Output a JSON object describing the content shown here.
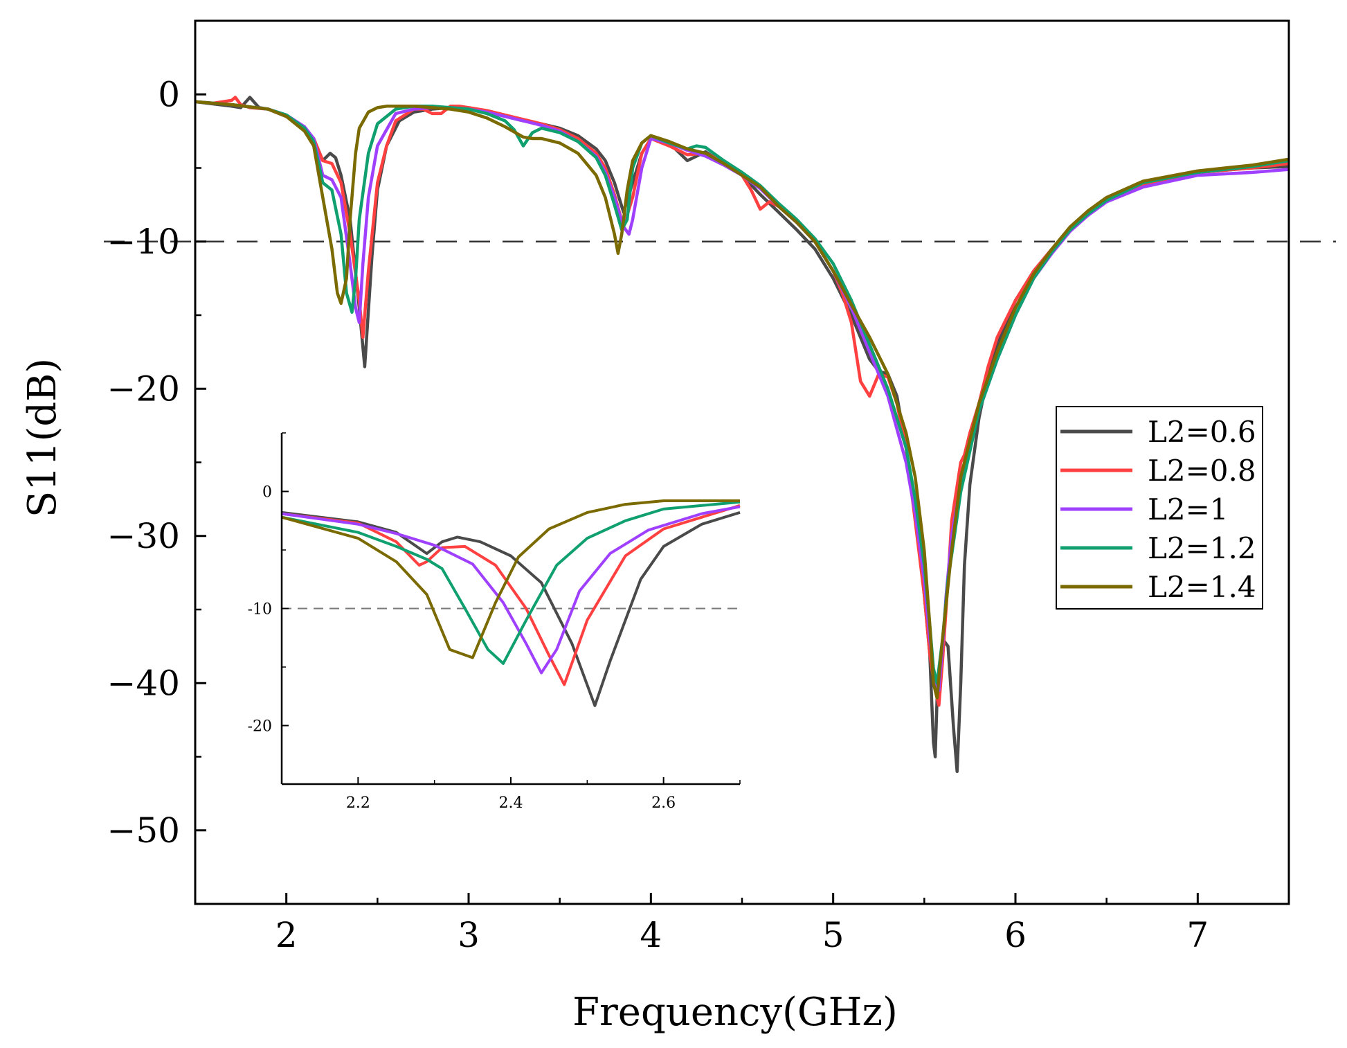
{
  "chart_data": {
    "type": "line",
    "xlabel": "Frequency(GHz)",
    "ylabel": "S11(dB)",
    "xlim": [
      1.5,
      7.5
    ],
    "ylim": [
      -55,
      5
    ],
    "xticks": [
      2,
      3,
      4,
      5,
      6,
      7
    ],
    "yticks": [
      0,
      -10,
      -20,
      -30,
      -40,
      -50
    ],
    "reference_line": {
      "y": -10,
      "style": "dashed"
    },
    "legend": {
      "placement": "right"
    },
    "series": [
      {
        "name": "L2=0.6",
        "color": "#4a4a4a",
        "x": [
          1.5,
          1.7,
          1.75,
          1.8,
          1.85,
          1.9,
          2.0,
          2.1,
          2.15,
          2.2,
          2.24,
          2.27,
          2.3,
          2.35,
          2.4,
          2.43,
          2.47,
          2.5,
          2.55,
          2.62,
          2.7,
          2.8,
          2.9,
          3.0,
          3.1,
          3.2,
          3.3,
          3.4,
          3.5,
          3.6,
          3.7,
          3.75,
          3.8,
          3.85,
          3.9,
          3.95,
          4.0,
          4.1,
          4.15,
          4.2,
          4.25,
          4.3,
          4.5,
          4.6,
          4.7,
          4.8,
          4.9,
          5.0,
          5.1,
          5.2,
          5.25,
          5.3,
          5.35,
          5.4,
          5.45,
          5.5,
          5.53,
          5.55,
          5.56,
          5.57,
          5.6,
          5.63,
          5.66,
          5.68,
          5.7,
          5.72,
          5.75,
          5.8,
          5.85,
          5.9,
          6.0,
          6.05,
          6.1,
          6.2,
          6.3,
          6.4,
          6.5,
          6.7,
          7.0,
          7.3,
          7.5
        ],
        "y": [
          -0.5,
          -0.8,
          -0.9,
          -0.2,
          -0.9,
          -1.0,
          -1.5,
          -2.3,
          -3.0,
          -4.5,
          -4.0,
          -4.3,
          -5.5,
          -8.5,
          -14.5,
          -18.5,
          -11.0,
          -6.5,
          -3.5,
          -1.8,
          -1.2,
          -1.0,
          -0.9,
          -1.0,
          -1.2,
          -1.5,
          -1.8,
          -2.0,
          -2.3,
          -2.8,
          -3.7,
          -4.5,
          -6.0,
          -8.0,
          -6.0,
          -4.0,
          -3.0,
          -3.3,
          -3.9,
          -4.5,
          -4.2,
          -3.9,
          -5.5,
          -6.8,
          -8.0,
          -9.2,
          -10.5,
          -12.5,
          -15.0,
          -18.0,
          -18.8,
          -19.0,
          -20.5,
          -24.0,
          -28.0,
          -34.0,
          -38.0,
          -44.0,
          -45.0,
          -41.0,
          -37.0,
          -37.5,
          -43.0,
          -46.0,
          -40.0,
          -32.0,
          -26.5,
          -22.0,
          -19.0,
          -17.0,
          -14.0,
          -13.0,
          -12.0,
          -10.5,
          -9.2,
          -8.2,
          -7.2,
          -6.2,
          -5.3,
          -5.0,
          -4.9
        ]
      },
      {
        "name": "L2=0.8",
        "color": "#ff4040",
        "x": [
          1.5,
          1.6,
          1.7,
          1.72,
          1.75,
          1.8,
          1.9,
          2.0,
          2.1,
          2.15,
          2.2,
          2.25,
          2.3,
          2.35,
          2.4,
          2.42,
          2.45,
          2.5,
          2.55,
          2.6,
          2.7,
          2.75,
          2.8,
          2.85,
          2.9,
          2.95,
          3.0,
          3.1,
          3.2,
          3.3,
          3.4,
          3.5,
          3.6,
          3.7,
          3.75,
          3.8,
          3.85,
          3.9,
          3.95,
          4.0,
          4.1,
          4.2,
          4.3,
          4.4,
          4.5,
          4.55,
          4.6,
          4.65,
          4.7,
          4.8,
          4.9,
          5.0,
          5.05,
          5.1,
          5.15,
          5.2,
          5.25,
          5.3,
          5.35,
          5.4,
          5.45,
          5.5,
          5.53,
          5.56,
          5.58,
          5.6,
          5.63,
          5.65,
          5.7,
          5.72,
          5.75,
          5.8,
          5.85,
          5.9,
          6.0,
          6.1,
          6.2,
          6.3,
          6.4,
          6.5,
          6.7,
          7.0,
          7.3,
          7.5
        ],
        "y": [
          -0.5,
          -0.6,
          -0.4,
          -0.2,
          -0.7,
          -0.9,
          -1.0,
          -1.5,
          -2.3,
          -3.0,
          -4.5,
          -4.7,
          -6.0,
          -9.5,
          -14.0,
          -16.5,
          -12.0,
          -6.0,
          -3.5,
          -1.8,
          -1.0,
          -1.0,
          -1.3,
          -1.3,
          -0.8,
          -0.8,
          -0.9,
          -1.1,
          -1.4,
          -1.7,
          -2.0,
          -2.4,
          -3.0,
          -4.0,
          -5.0,
          -6.8,
          -9.0,
          -7.0,
          -4.0,
          -3.0,
          -3.5,
          -4.1,
          -4.0,
          -4.6,
          -5.5,
          -6.5,
          -7.8,
          -7.3,
          -7.6,
          -8.7,
          -10.0,
          -12.0,
          -13.5,
          -15.5,
          -19.5,
          -20.5,
          -19.0,
          -19.2,
          -21.0,
          -24.0,
          -29.0,
          -34.0,
          -38.0,
          -40.5,
          -41.5,
          -38.5,
          -33.0,
          -29.0,
          -25.0,
          -24.5,
          -23.0,
          -21.0,
          -18.5,
          -16.5,
          -14.0,
          -12.0,
          -10.5,
          -9.2,
          -8.2,
          -7.2,
          -6.1,
          -5.3,
          -5.0,
          -4.7
        ]
      },
      {
        "name": "L2=1",
        "color": "#a040ff",
        "x": [
          1.5,
          1.7,
          1.9,
          2.0,
          2.1,
          2.15,
          2.2,
          2.25,
          2.3,
          2.35,
          2.38,
          2.4,
          2.42,
          2.45,
          2.5,
          2.6,
          2.7,
          2.8,
          2.9,
          3.0,
          3.1,
          3.2,
          3.3,
          3.4,
          3.5,
          3.6,
          3.7,
          3.75,
          3.8,
          3.85,
          3.88,
          3.9,
          3.95,
          4.0,
          4.1,
          4.2,
          4.3,
          4.4,
          4.5,
          4.6,
          4.7,
          4.8,
          4.9,
          5.0,
          5.1,
          5.2,
          5.3,
          5.4,
          5.45,
          5.5,
          5.53,
          5.56,
          5.58,
          5.6,
          5.62,
          5.65,
          5.7,
          5.8,
          5.9,
          6.0,
          6.1,
          6.2,
          6.3,
          6.4,
          6.5,
          6.7,
          7.0,
          7.3,
          7.5
        ],
        "y": [
          -0.5,
          -0.7,
          -1.0,
          -1.4,
          -2.2,
          -3.0,
          -5.5,
          -5.8,
          -7.0,
          -11.5,
          -14.5,
          -15.5,
          -11.5,
          -7.0,
          -3.5,
          -1.3,
          -1.0,
          -0.9,
          -0.9,
          -1.0,
          -1.2,
          -1.5,
          -1.8,
          -2.1,
          -2.5,
          -3.2,
          -4.2,
          -5.3,
          -7.0,
          -9.0,
          -9.5,
          -8.5,
          -5.0,
          -3.0,
          -3.3,
          -3.8,
          -4.2,
          -4.8,
          -5.5,
          -6.4,
          -7.6,
          -8.7,
          -10.0,
          -12.0,
          -14.5,
          -17.5,
          -20.5,
          -25.0,
          -28.5,
          -33.0,
          -37.0,
          -40.0,
          -40.5,
          -37.5,
          -34.0,
          -30.0,
          -26.5,
          -21.5,
          -18.0,
          -15.0,
          -12.5,
          -10.8,
          -9.3,
          -8.2,
          -7.3,
          -6.3,
          -5.5,
          -5.3,
          -5.1
        ]
      },
      {
        "name": "L2=1.2",
        "color": "#10a070",
        "x": [
          1.5,
          1.7,
          1.9,
          2.0,
          2.1,
          2.15,
          2.2,
          2.25,
          2.3,
          2.33,
          2.36,
          2.38,
          2.4,
          2.45,
          2.5,
          2.6,
          2.7,
          2.8,
          2.9,
          3.0,
          3.1,
          3.2,
          3.25,
          3.3,
          3.35,
          3.4,
          3.5,
          3.6,
          3.7,
          3.75,
          3.8,
          3.84,
          3.87,
          3.9,
          3.95,
          4.0,
          4.1,
          4.2,
          4.25,
          4.3,
          4.4,
          4.5,
          4.6,
          4.7,
          4.8,
          4.9,
          5.0,
          5.1,
          5.2,
          5.3,
          5.4,
          5.45,
          5.5,
          5.53,
          5.55,
          5.57,
          5.6,
          5.63,
          5.7,
          5.8,
          5.9,
          6.0,
          6.1,
          6.2,
          6.3,
          6.4,
          6.5,
          6.7,
          7.0,
          7.3,
          7.5
        ],
        "y": [
          -0.5,
          -0.7,
          -1.0,
          -1.4,
          -2.3,
          -3.2,
          -6.0,
          -6.5,
          -9.5,
          -13.5,
          -14.8,
          -12.5,
          -8.5,
          -4.0,
          -2.0,
          -1.0,
          -0.8,
          -0.8,
          -0.9,
          -1.0,
          -1.3,
          -1.8,
          -2.4,
          -3.5,
          -2.6,
          -2.3,
          -2.6,
          -3.2,
          -4.3,
          -5.5,
          -7.5,
          -9.2,
          -8.5,
          -5.0,
          -3.3,
          -2.8,
          -3.3,
          -3.7,
          -3.5,
          -3.6,
          -4.5,
          -5.3,
          -6.2,
          -7.4,
          -8.5,
          -9.8,
          -11.5,
          -14.0,
          -17.0,
          -20.0,
          -24.0,
          -27.5,
          -32.0,
          -36.0,
          -39.0,
          -40.0,
          -37.0,
          -33.0,
          -27.0,
          -21.5,
          -18.0,
          -15.0,
          -12.5,
          -10.7,
          -9.2,
          -8.1,
          -7.2,
          -6.0,
          -5.3,
          -4.9,
          -4.5
        ]
      },
      {
        "name": "L2=1.4",
        "color": "#7a6a00",
        "x": [
          1.5,
          1.7,
          1.9,
          2.0,
          2.1,
          2.15,
          2.2,
          2.25,
          2.28,
          2.3,
          2.33,
          2.35,
          2.38,
          2.4,
          2.45,
          2.5,
          2.55,
          2.6,
          2.7,
          2.8,
          2.9,
          3.0,
          3.1,
          3.2,
          3.3,
          3.35,
          3.4,
          3.5,
          3.6,
          3.7,
          3.75,
          3.8,
          3.82,
          3.84,
          3.87,
          3.9,
          3.95,
          4.0,
          4.1,
          4.2,
          4.3,
          4.4,
          4.5,
          4.6,
          4.7,
          4.8,
          4.9,
          5.0,
          5.1,
          5.2,
          5.3,
          5.4,
          5.45,
          5.5,
          5.53,
          5.55,
          5.57,
          5.6,
          5.65,
          5.7,
          5.8,
          5.9,
          6.0,
          6.1,
          6.2,
          6.3,
          6.4,
          6.5,
          6.7,
          7.0,
          7.3,
          7.5
        ],
        "y": [
          -0.5,
          -0.7,
          -1.0,
          -1.5,
          -2.5,
          -3.5,
          -7.0,
          -10.5,
          -13.5,
          -14.2,
          -12.5,
          -8.5,
          -4.0,
          -2.3,
          -1.2,
          -0.9,
          -0.8,
          -0.8,
          -0.8,
          -0.9,
          -1.0,
          -1.2,
          -1.6,
          -2.2,
          -2.9,
          -3.0,
          -3.0,
          -3.3,
          -4.0,
          -5.5,
          -7.0,
          -9.5,
          -10.8,
          -9.5,
          -6.5,
          -4.5,
          -3.3,
          -2.8,
          -3.2,
          -3.7,
          -4.0,
          -4.7,
          -5.5,
          -6.3,
          -7.6,
          -8.7,
          -10.0,
          -12.0,
          -14.3,
          -16.5,
          -19.0,
          -23.0,
          -26.0,
          -31.0,
          -36.0,
          -40.0,
          -41.0,
          -37.0,
          -31.0,
          -26.0,
          -21.0,
          -17.5,
          -14.5,
          -12.2,
          -10.5,
          -9.0,
          -7.9,
          -7.0,
          -5.9,
          -5.2,
          -4.8,
          -4.4
        ]
      }
    ]
  },
  "inset": {
    "xlim": [
      2.1,
      2.7
    ],
    "ylim": [
      -25,
      5
    ],
    "xticks": [
      "2.2",
      "2.4",
      "2.6"
    ],
    "yticks": [
      "0",
      "-10",
      "-20"
    ],
    "reference_line": {
      "y": -10,
      "style": "dashed"
    },
    "series": [
      {
        "name": "L2=0.6",
        "color": "#4a4a4a",
        "x": [
          2.1,
          2.2,
          2.25,
          2.29,
          2.31,
          2.33,
          2.36,
          2.4,
          2.44,
          2.48,
          2.51,
          2.53,
          2.57,
          2.6,
          2.65,
          2.7
        ],
        "y": [
          -1.8,
          -2.6,
          -3.5,
          -5.3,
          -4.3,
          -3.9,
          -4.3,
          -5.5,
          -7.8,
          -13.0,
          -18.3,
          -14.5,
          -7.5,
          -4.7,
          -2.8,
          -1.8
        ]
      },
      {
        "name": "L2=0.8",
        "color": "#ff4040",
        "x": [
          2.1,
          2.2,
          2.25,
          2.28,
          2.29,
          2.31,
          2.34,
          2.38,
          2.42,
          2.45,
          2.47,
          2.5,
          2.55,
          2.6,
          2.7
        ],
        "y": [
          -1.9,
          -2.7,
          -4.3,
          -6.3,
          -6.0,
          -4.8,
          -4.7,
          -6.3,
          -10.0,
          -14.0,
          -16.5,
          -11.0,
          -5.5,
          -3.2,
          -1.2
        ]
      },
      {
        "name": "L2=1",
        "color": "#a040ff",
        "x": [
          2.1,
          2.2,
          2.25,
          2.3,
          2.35,
          2.39,
          2.42,
          2.44,
          2.46,
          2.49,
          2.53,
          2.58,
          2.65,
          2.7
        ],
        "y": [
          -1.9,
          -2.8,
          -3.6,
          -4.6,
          -6.2,
          -9.5,
          -13.0,
          -15.5,
          -13.5,
          -8.5,
          -5.3,
          -3.3,
          -1.9,
          -1.3
        ]
      },
      {
        "name": "L2=1.2",
        "color": "#10a070",
        "x": [
          2.1,
          2.2,
          2.25,
          2.29,
          2.31,
          2.34,
          2.37,
          2.39,
          2.42,
          2.46,
          2.5,
          2.55,
          2.6,
          2.7
        ],
        "y": [
          -2.2,
          -3.5,
          -4.7,
          -5.8,
          -6.6,
          -10.0,
          -13.5,
          -14.7,
          -11.0,
          -6.3,
          -4.0,
          -2.5,
          -1.5,
          -0.9
        ]
      },
      {
        "name": "L2=1.4",
        "color": "#7a6a00",
        "x": [
          2.1,
          2.2,
          2.25,
          2.29,
          2.32,
          2.35,
          2.38,
          2.41,
          2.45,
          2.5,
          2.55,
          2.6,
          2.7
        ],
        "y": [
          -2.2,
          -4.0,
          -6.0,
          -8.8,
          -13.5,
          -14.2,
          -9.5,
          -5.6,
          -3.2,
          -1.8,
          -1.1,
          -0.8,
          -0.8
        ]
      }
    ]
  }
}
